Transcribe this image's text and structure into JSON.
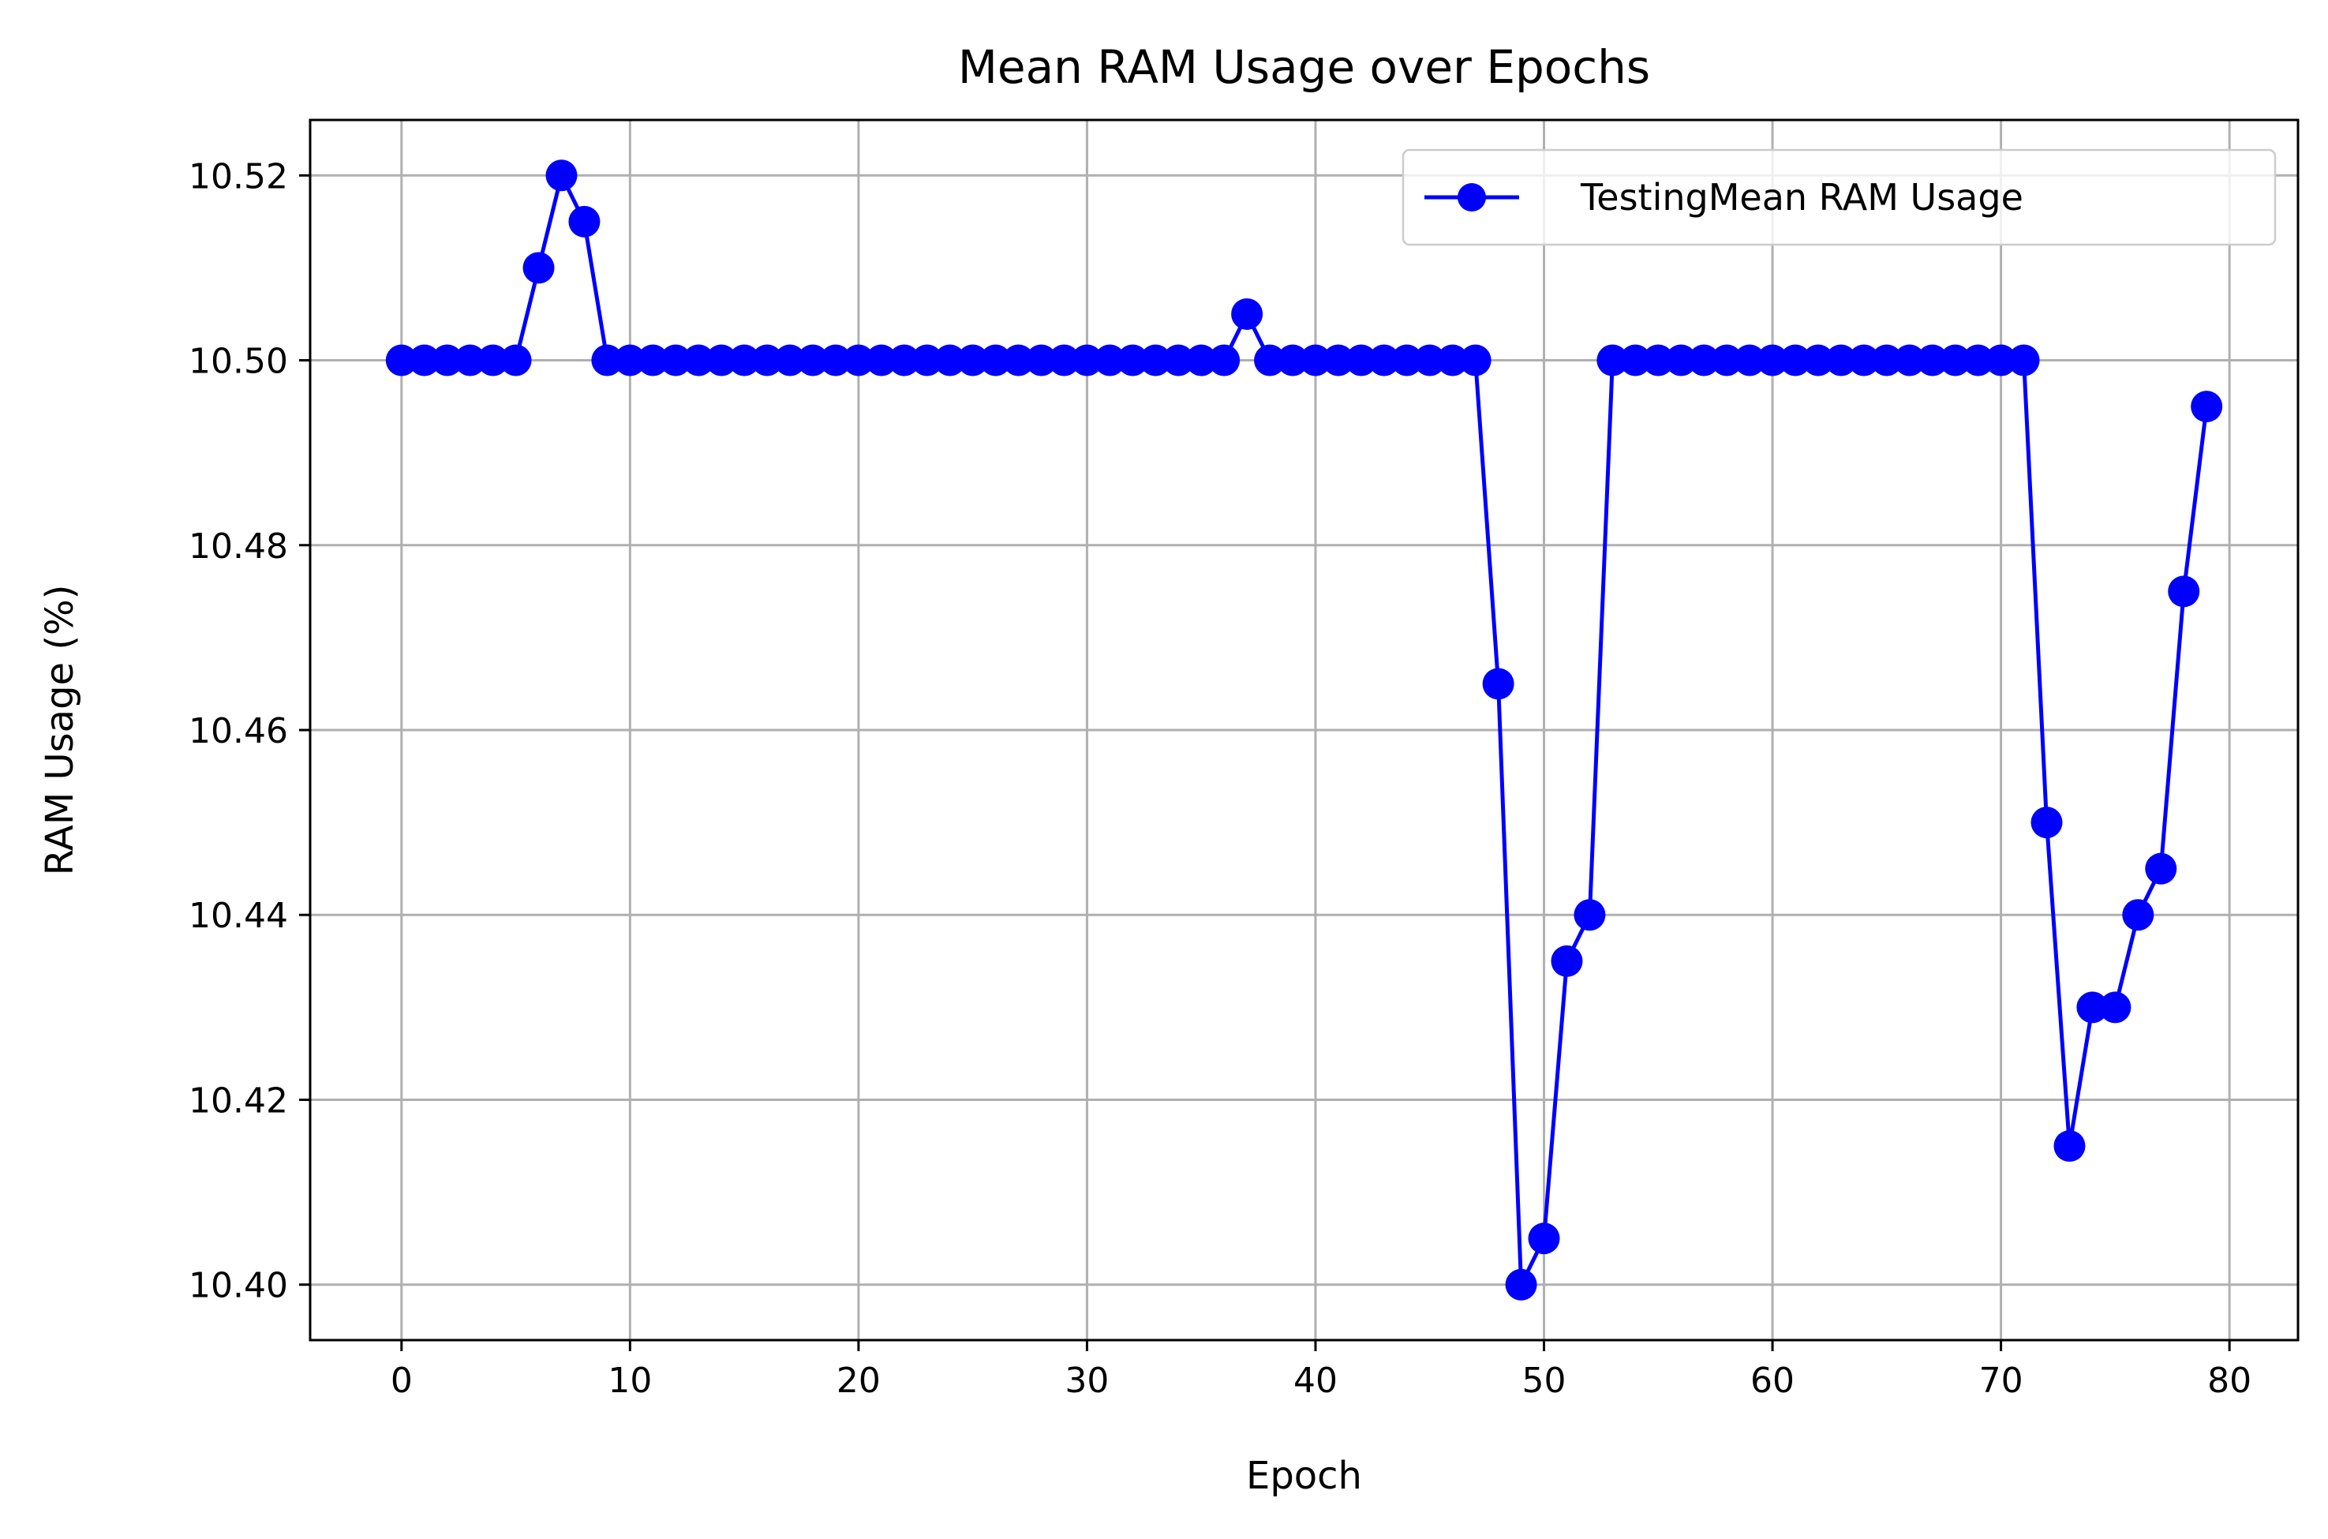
{
  "chart_data": {
    "type": "line",
    "title": "Mean RAM Usage over Epochs",
    "xlabel": "Epoch",
    "ylabel": "RAM Usage (%)",
    "xlim": [
      -4,
      83
    ],
    "ylim": [
      10.394,
      10.526
    ],
    "xticks": [
      0,
      10,
      20,
      30,
      40,
      50,
      60,
      70,
      80
    ],
    "yticks": [
      10.4,
      10.42,
      10.44,
      10.46,
      10.48,
      10.5,
      10.52
    ],
    "grid": true,
    "legend_position": "top-right",
    "series": [
      {
        "name": "TestingMean RAM Usage",
        "color": "#0000ff",
        "marker": "circle",
        "x": [
          0,
          1,
          2,
          3,
          4,
          5,
          6,
          7,
          8,
          9,
          10,
          11,
          12,
          13,
          14,
          15,
          16,
          17,
          18,
          19,
          20,
          21,
          22,
          23,
          24,
          25,
          26,
          27,
          28,
          29,
          30,
          31,
          32,
          33,
          34,
          35,
          36,
          37,
          38,
          39,
          40,
          41,
          42,
          43,
          44,
          45,
          46,
          47,
          48,
          49,
          50,
          51,
          52,
          53,
          54,
          55,
          56,
          57,
          58,
          59,
          60,
          61,
          62,
          63,
          64,
          65,
          66,
          67,
          68,
          69,
          70,
          71,
          72,
          73,
          74,
          75,
          76,
          77,
          78,
          79
        ],
        "values": [
          10.5,
          10.5,
          10.5,
          10.5,
          10.5,
          10.5,
          10.51,
          10.52,
          10.515,
          10.5,
          10.5,
          10.5,
          10.5,
          10.5,
          10.5,
          10.5,
          10.5,
          10.5,
          10.5,
          10.5,
          10.5,
          10.5,
          10.5,
          10.5,
          10.5,
          10.5,
          10.5,
          10.5,
          10.5,
          10.5,
          10.5,
          10.5,
          10.5,
          10.5,
          10.5,
          10.5,
          10.5,
          10.505,
          10.5,
          10.5,
          10.5,
          10.5,
          10.5,
          10.5,
          10.5,
          10.5,
          10.5,
          10.5,
          10.465,
          10.4,
          10.405,
          10.435,
          10.44,
          10.5,
          10.5,
          10.5,
          10.5,
          10.5,
          10.5,
          10.5,
          10.5,
          10.5,
          10.5,
          10.5,
          10.5,
          10.5,
          10.5,
          10.5,
          10.5,
          10.5,
          10.5,
          10.5,
          10.45,
          10.415,
          10.43,
          10.43,
          10.44,
          10.445,
          10.475,
          10.495
        ]
      }
    ]
  }
}
